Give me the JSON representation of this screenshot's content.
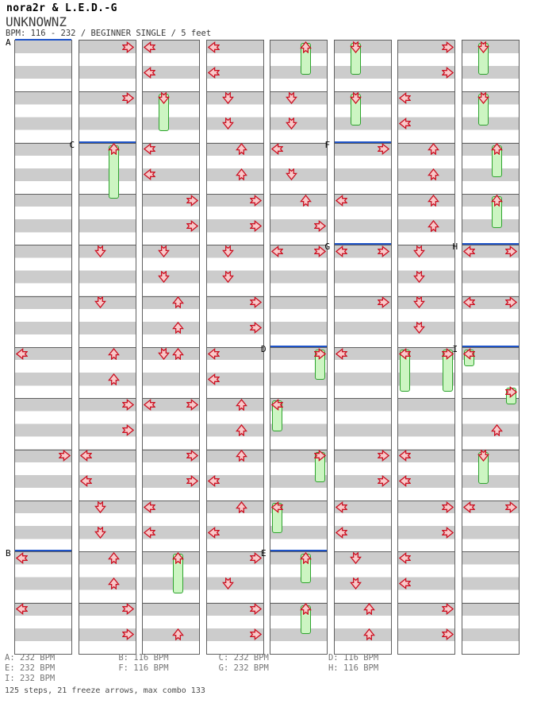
{
  "header": {
    "artist": "nora2r & L.E.D.-G",
    "song_title": "UNKNOWNZ",
    "info_line": "BPM: 116 - 232 / BEGINNER SINGLE / 5 feet"
  },
  "footer": {
    "legend_rows": [
      [
        "A: 232 BPM",
        "B: 116 BPM",
        "C: 232 BPM",
        "D: 116 BPM"
      ],
      [
        "E: 232 BPM",
        "F: 116 BPM",
        "G: 232 BPM",
        "H: 116 BPM"
      ],
      [
        "I: 232 BPM"
      ]
    ],
    "summary": "125 steps, 21 freeze arrows, max combo 133"
  },
  "colors": {
    "stripe_gray": "#cccccc",
    "stripe_white": "#ffffff",
    "grid_line": "#606060",
    "section_line": "#1e53c8",
    "arrow_outline": "#cc1122",
    "arrow_fill": "#f8caca",
    "freeze_fill": "#ccf5c2",
    "freeze_outline": "#2da32d",
    "text_gray": "#767676"
  },
  "chart_data": {
    "type": "stepchart",
    "game_mode": "single (4 lanes)",
    "lanes": [
      "left",
      "down",
      "up",
      "right"
    ],
    "columns_count": 8,
    "measures_per_column": 12,
    "rows_per_column": 48,
    "sections": [
      {
        "label": "A",
        "col": 0,
        "row": 0
      },
      {
        "label": "B",
        "col": 0,
        "row": 40
      },
      {
        "label": "C",
        "col": 1,
        "row": 8
      },
      {
        "label": "D",
        "col": 4,
        "row": 24
      },
      {
        "label": "E",
        "col": 4,
        "row": 40
      },
      {
        "label": "F",
        "col": 5,
        "row": 8
      },
      {
        "label": "G",
        "col": 5,
        "row": 16
      },
      {
        "label": "H",
        "col": 7,
        "row": 16
      },
      {
        "label": "I",
        "col": 7,
        "row": 24
      }
    ],
    "section_bpms": {
      "A": 232,
      "B": 116,
      "C": 232,
      "D": 116,
      "E": 232,
      "F": 116,
      "G": 232,
      "H": 116,
      "I": 232
    },
    "columns": [
      {
        "taps": [
          [
            24,
            "L"
          ],
          [
            32,
            "R"
          ],
          [
            40,
            "L"
          ],
          [
            44,
            "L"
          ]
        ],
        "freezes": []
      },
      {
        "taps": [
          [
            0,
            "R"
          ],
          [
            4,
            "R"
          ],
          [
            16,
            "D"
          ],
          [
            20,
            "D"
          ],
          [
            24,
            "U"
          ],
          [
            26,
            "U"
          ],
          [
            28,
            "R"
          ],
          [
            30,
            "R"
          ],
          [
            32,
            "L"
          ],
          [
            34,
            "L"
          ],
          [
            36,
            "D"
          ],
          [
            38,
            "D"
          ],
          [
            40,
            "U"
          ],
          [
            42,
            "U"
          ],
          [
            44,
            "R"
          ],
          [
            46,
            "R"
          ]
        ],
        "freezes": [
          [
            8,
            12.5,
            "U"
          ]
        ]
      },
      {
        "taps": [
          [
            0,
            "L"
          ],
          [
            2,
            "L"
          ],
          [
            8,
            "L"
          ],
          [
            10,
            "L"
          ],
          [
            12,
            "R"
          ],
          [
            14,
            "R"
          ],
          [
            16,
            "D"
          ],
          [
            18,
            "D"
          ],
          [
            20,
            "U"
          ],
          [
            22,
            "U"
          ],
          [
            24,
            "D"
          ],
          [
            24,
            "U"
          ],
          [
            28,
            "L"
          ],
          [
            28,
            "R"
          ],
          [
            32,
            "R"
          ],
          [
            34,
            "R"
          ],
          [
            36,
            "L"
          ],
          [
            38,
            "L"
          ],
          [
            46,
            "U"
          ]
        ],
        "freezes": [
          [
            4,
            7.2,
            "D"
          ],
          [
            40,
            43.4,
            "U"
          ]
        ]
      },
      {
        "taps": [
          [
            0,
            "L"
          ],
          [
            2,
            "L"
          ],
          [
            4,
            "D"
          ],
          [
            6,
            "D"
          ],
          [
            8,
            "U"
          ],
          [
            10,
            "U"
          ],
          [
            12,
            "R"
          ],
          [
            14,
            "R"
          ],
          [
            16,
            "D"
          ],
          [
            18,
            "D"
          ],
          [
            20,
            "R"
          ],
          [
            22,
            "R"
          ],
          [
            24,
            "L"
          ],
          [
            26,
            "L"
          ],
          [
            28,
            "U"
          ],
          [
            30,
            "U"
          ],
          [
            32,
            "U"
          ],
          [
            34,
            "L"
          ],
          [
            36,
            "U"
          ],
          [
            38,
            "L"
          ],
          [
            40,
            "R"
          ],
          [
            42,
            "D"
          ],
          [
            44,
            "R"
          ],
          [
            46,
            "R"
          ]
        ],
        "freezes": []
      },
      {
        "taps": [
          [
            4,
            "D"
          ],
          [
            6,
            "D"
          ],
          [
            8,
            "L"
          ],
          [
            10,
            "D"
          ],
          [
            12,
            "U"
          ],
          [
            14,
            "R"
          ],
          [
            16,
            "L"
          ],
          [
            16,
            "R"
          ]
        ],
        "freezes": [
          [
            0,
            2.8,
            "U"
          ],
          [
            24,
            26.7,
            "R"
          ],
          [
            28,
            30.7,
            "L"
          ],
          [
            32,
            34.7,
            "R"
          ],
          [
            36,
            38.7,
            "L"
          ],
          [
            40,
            42.6,
            "U"
          ],
          [
            44,
            46.6,
            "U"
          ]
        ]
      },
      {
        "taps": [
          [
            8,
            "R"
          ],
          [
            12,
            "L"
          ],
          [
            16,
            "L"
          ],
          [
            16,
            "R"
          ],
          [
            20,
            "R"
          ],
          [
            24,
            "L"
          ],
          [
            32,
            "R"
          ],
          [
            34,
            "R"
          ],
          [
            36,
            "L"
          ],
          [
            38,
            "L"
          ],
          [
            40,
            "D"
          ],
          [
            42,
            "D"
          ],
          [
            44,
            "U"
          ],
          [
            46,
            "U"
          ]
        ],
        "freezes": [
          [
            0,
            2.8,
            "D"
          ],
          [
            4,
            6.8,
            "D"
          ]
        ]
      },
      {
        "taps": [
          [
            0,
            "R"
          ],
          [
            2,
            "R"
          ],
          [
            4,
            "L"
          ],
          [
            6,
            "L"
          ],
          [
            8,
            "U"
          ],
          [
            10,
            "U"
          ],
          [
            12,
            "U"
          ],
          [
            14,
            "U"
          ],
          [
            16,
            "D"
          ],
          [
            18,
            "D"
          ],
          [
            20,
            "D"
          ],
          [
            22,
            "D"
          ],
          [
            32,
            "L"
          ],
          [
            34,
            "L"
          ],
          [
            36,
            "R"
          ],
          [
            38,
            "R"
          ],
          [
            40,
            "L"
          ],
          [
            42,
            "L"
          ],
          [
            44,
            "R"
          ],
          [
            46,
            "R"
          ]
        ],
        "freezes": [
          [
            24,
            27.6,
            "L"
          ],
          [
            24,
            27.6,
            "R"
          ]
        ]
      },
      {
        "taps": [
          [
            16,
            "L"
          ],
          [
            16,
            "R"
          ],
          [
            20,
            "L"
          ],
          [
            20,
            "R"
          ],
          [
            30,
            "U"
          ],
          [
            36,
            "L"
          ],
          [
            36,
            "R"
          ]
        ],
        "freezes": [
          [
            0,
            2.8,
            "D"
          ],
          [
            4,
            6.8,
            "D"
          ],
          [
            8,
            10.8,
            "U"
          ],
          [
            12,
            14.8,
            "U"
          ],
          [
            24,
            25.6,
            "L"
          ],
          [
            27,
            28.6,
            "R"
          ],
          [
            32,
            34.8,
            "D"
          ]
        ]
      }
    ],
    "totals": {
      "steps": 125,
      "freeze_arrows": 21,
      "max_combo": 133
    }
  }
}
